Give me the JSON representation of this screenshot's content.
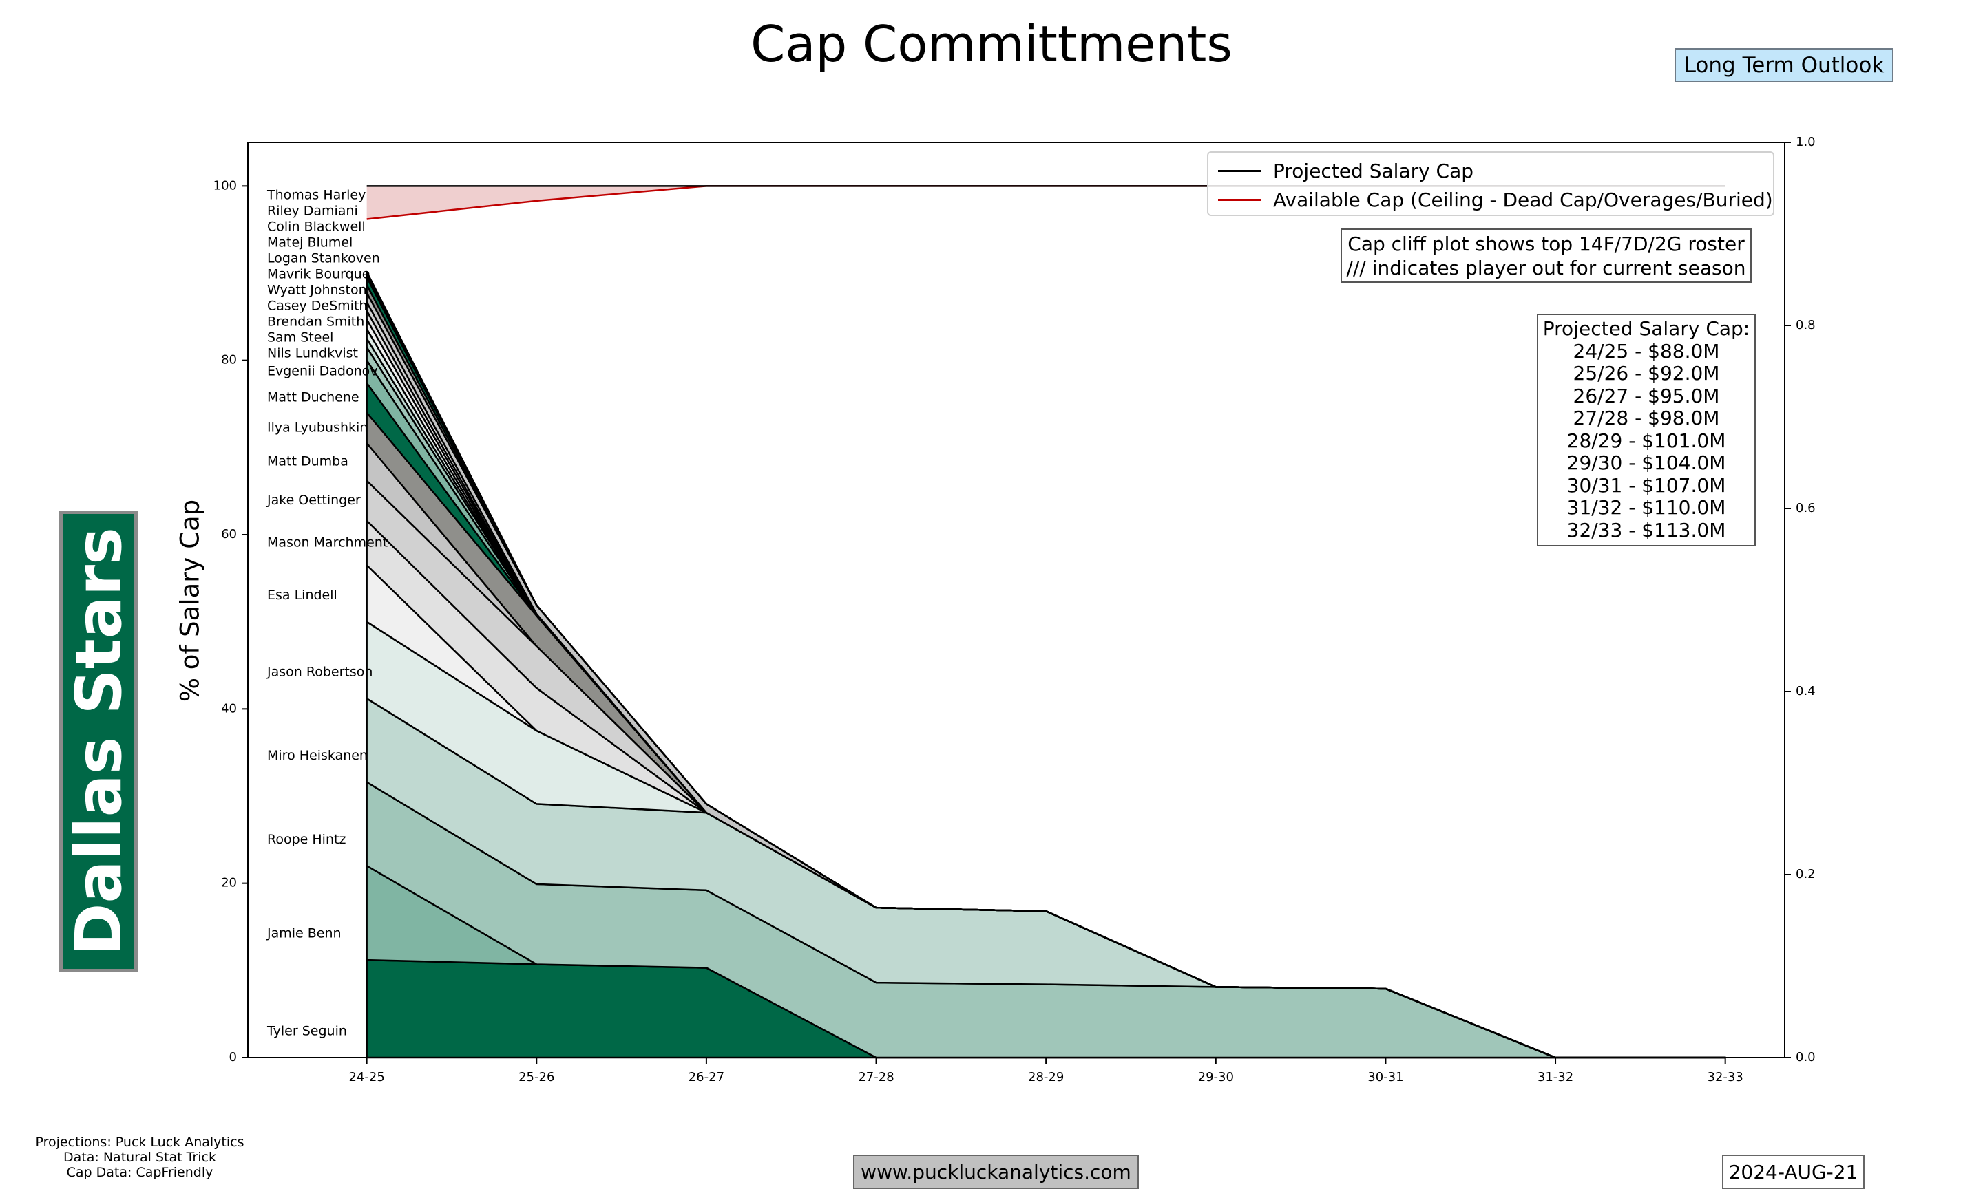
{
  "title": "Cap Committments",
  "outlook_label": "Long Term Outlook",
  "team_name": "Dallas Stars",
  "team_color": "#006847",
  "notes": {
    "line1": "Cap cliff plot shows top 14F/7D/2G roster",
    "line2": "/// indicates player out for current season"
  },
  "projected_cap_box": {
    "heading": "Projected Salary Cap:",
    "lines": [
      "24/25 - $88.0M",
      "25/26 - $92.0M",
      "26/27 - $95.0M",
      "27/28 - $98.0M",
      "28/29 - $101.0M",
      "29/30 - $104.0M",
      "30/31 - $107.0M",
      "31/32 - $110.0M",
      "32/33 - $113.0M"
    ]
  },
  "footer": {
    "sources": [
      "Projections: Puck Luck Analytics",
      "Data: Natural Stat Trick",
      "Cap Data: CapFriendly"
    ],
    "website": "www.puckluckanalytics.com",
    "date": "2024-AUG-21"
  },
  "chart_data": {
    "type": "area",
    "stacked": true,
    "title": "Cap Committments",
    "xlabel": "",
    "ylabel": "% of Salary Cap",
    "categories": [
      "24-25",
      "25-26",
      "26-27",
      "27-28",
      "28-29",
      "29-30",
      "30-31",
      "31-32",
      "32-33"
    ],
    "xlim": [
      -0.7,
      8.35
    ],
    "ylim": [
      0,
      105
    ],
    "yticks": [
      0,
      20,
      40,
      60,
      80,
      100
    ],
    "y2lim": [
      0,
      1
    ],
    "y2ticks": [
      "0.0",
      "0.2",
      "0.4",
      "0.6",
      "0.8",
      "1.0"
    ],
    "grid": false,
    "legend_position": "top-right",
    "color_cycle": [
      "#006847",
      "#80b5a3",
      "#a0c6b9",
      "#c0d9d1",
      "#e0ece8",
      "#f0f0f0",
      "#e1e1e1",
      "#d1d1d1",
      "#c4c4c4",
      "#8f8f8b"
    ],
    "series": [
      {
        "name": "Tyler Seguin",
        "values": [
          11.2,
          10.7,
          10.3,
          0,
          0,
          0,
          0,
          0,
          0
        ]
      },
      {
        "name": "Jamie Benn",
        "values": [
          10.8,
          0,
          0,
          0,
          0,
          0,
          0,
          0,
          0
        ]
      },
      {
        "name": "Roope Hintz",
        "values": [
          9.6,
          9.2,
          8.9,
          8.6,
          8.4,
          8.1,
          7.9,
          0,
          0
        ]
      },
      {
        "name": "Miro Heiskanen",
        "values": [
          9.6,
          9.2,
          8.9,
          8.6,
          8.4,
          0,
          0,
          0,
          0
        ]
      },
      {
        "name": "Jason Robertson",
        "values": [
          8.8,
          8.4,
          0,
          0,
          0,
          0,
          0,
          0,
          0
        ]
      },
      {
        "name": "Esa Lindell",
        "values": [
          6.5,
          0,
          0,
          0,
          0,
          0,
          0,
          0,
          0
        ]
      },
      {
        "name": "Mason Marchment",
        "values": [
          5.1,
          4.9,
          0,
          0,
          0,
          0,
          0,
          0,
          0
        ]
      },
      {
        "name": "Jake Oettinger",
        "values": [
          4.6,
          4.8,
          0,
          0,
          0,
          0,
          0,
          0,
          0
        ]
      },
      {
        "name": "Matt Dumba",
        "values": [
          4.3,
          0,
          0,
          0,
          0,
          0,
          0,
          0,
          0
        ]
      },
      {
        "name": "Ilya Lyubushkin",
        "values": [
          3.5,
          3.5,
          0,
          0,
          0,
          0,
          0,
          0,
          0
        ]
      },
      {
        "name": "Matt Duchene",
        "values": [
          3.4,
          0,
          0,
          0,
          0,
          0,
          0,
          0,
          0
        ]
      },
      {
        "name": "Evgenii Dadonov",
        "values": [
          2.6,
          0,
          0,
          0,
          0,
          0,
          0,
          0,
          0
        ]
      },
      {
        "name": "Nils Lundkvist",
        "values": [
          1.5,
          0,
          0,
          0,
          0,
          0,
          0,
          0,
          0
        ]
      },
      {
        "name": "Sam Steel",
        "values": [
          1.0,
          0,
          0,
          0,
          0,
          0,
          0,
          0,
          0
        ]
      },
      {
        "name": "Brendan Smith",
        "values": [
          1.1,
          0,
          0,
          0,
          0,
          0,
          0,
          0,
          0
        ]
      },
      {
        "name": "Casey DeSmith",
        "values": [
          1.1,
          0,
          0,
          0,
          0,
          0,
          0,
          0,
          0
        ]
      },
      {
        "name": "Wyatt Johnston",
        "values": [
          1.0,
          0,
          0,
          0,
          0,
          0,
          0,
          0,
          0
        ]
      },
      {
        "name": "Mavrik Bourque",
        "values": [
          1.0,
          0.2,
          0,
          0,
          0,
          0,
          0,
          0,
          0
        ]
      },
      {
        "name": "Logan Stankoven",
        "values": [
          1.05,
          1.0,
          1.0,
          0,
          0,
          0,
          0,
          0,
          0
        ]
      },
      {
        "name": "Matej Blumel",
        "values": [
          0.9,
          0,
          0,
          0,
          0,
          0,
          0,
          0,
          0
        ]
      },
      {
        "name": "Colin Blackwell",
        "values": [
          0.9,
          0,
          0,
          0,
          0,
          0,
          0,
          0,
          0
        ]
      },
      {
        "name": "Riley Damiani",
        "values": [
          0.3,
          0,
          0,
          0,
          0,
          0,
          0,
          0,
          0
        ]
      },
      {
        "name": "Thomas Harley",
        "values": [
          0.3,
          0,
          0,
          0,
          0,
          0,
          0,
          0,
          0
        ]
      }
    ],
    "lines": [
      {
        "name": "Projected Salary Cap",
        "color": "#000000",
        "values": [
          100,
          100,
          100,
          100,
          100,
          100,
          100,
          100,
          100
        ]
      },
      {
        "name": "Available Cap (Ceiling - Dead Cap/Overages/Buried)",
        "color": "#c00000",
        "fill": "#efcfcf",
        "values": [
          96.2,
          98.3,
          100,
          100,
          100,
          100,
          100,
          100,
          100
        ]
      }
    ]
  }
}
